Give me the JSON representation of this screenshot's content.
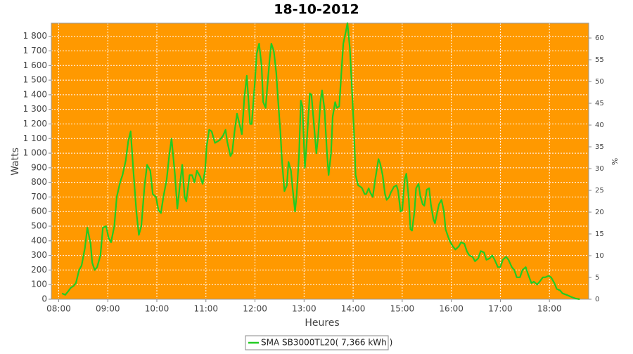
{
  "chart_data": {
    "type": "line",
    "title": "18-10-2012",
    "x_label": "Heures",
    "y_label": "Watts",
    "y2_label": "%",
    "x": [
      "08:04",
      "08:08",
      "08:11",
      "08:15",
      "08:18",
      "08:21",
      "08:25",
      "08:28",
      "08:32",
      "08:35",
      "08:39",
      "08:41",
      "08:44",
      "08:47",
      "08:51",
      "08:54",
      "08:58",
      "09:01",
      "09:04",
      "09:08",
      "09:11",
      "09:15",
      "09:18",
      "09:22",
      "09:25",
      "09:28",
      "09:31",
      "09:35",
      "09:38",
      "09:41",
      "09:45",
      "09:48",
      "09:52",
      "09:55",
      "09:59",
      "10:02",
      "10:05",
      "10:08",
      "10:12",
      "10:15",
      "10:18",
      "10:22",
      "10:25",
      "10:29",
      "10:31",
      "10:34",
      "10:36",
      "10:40",
      "10:43",
      "10:46",
      "10:49",
      "10:53",
      "10:56",
      "10:59",
      "11:01",
      "11:04",
      "11:07",
      "11:11",
      "11:14",
      "11:17",
      "11:21",
      "11:24",
      "11:26",
      "11:30",
      "11:32",
      "11:35",
      "11:38",
      "11:41",
      "11:44",
      "11:47",
      "11:50",
      "11:54",
      "11:56",
      "12:00",
      "12:02",
      "12:05",
      "12:08",
      "12:10",
      "12:13",
      "12:15",
      "12:18",
      "12:20",
      "12:23",
      "12:26",
      "12:28",
      "12:31",
      "12:33",
      "12:36",
      "12:39",
      "12:41",
      "12:44",
      "12:46",
      "12:49",
      "12:51",
      "12:54",
      "12:56",
      "12:58",
      "13:01",
      "13:03",
      "13:07",
      "13:09",
      "13:12",
      "13:15",
      "13:17",
      "13:20",
      "13:22",
      "13:25",
      "13:28",
      "13:30",
      "13:33",
      "13:35",
      "13:38",
      "13:40",
      "13:43",
      "13:45",
      "13:48",
      "13:51",
      "13:53",
      "13:56",
      "13:58",
      "14:01",
      "14:03",
      "14:06",
      "14:09",
      "14:11",
      "14:14",
      "14:16",
      "14:19",
      "14:21",
      "14:24",
      "14:27",
      "14:31",
      "14:33",
      "14:36",
      "14:39",
      "14:41",
      "14:44",
      "14:46",
      "14:50",
      "14:53",
      "14:55",
      "14:58",
      "15:00",
      "15:03",
      "15:05",
      "15:08",
      "15:10",
      "15:12",
      "15:15",
      "15:17",
      "15:20",
      "15:22",
      "15:25",
      "15:27",
      "15:30",
      "15:33",
      "15:35",
      "15:38",
      "15:40",
      "15:43",
      "15:45",
      "15:48",
      "15:51",
      "15:53",
      "15:56",
      "15:58",
      "16:02",
      "16:05",
      "16:09",
      "16:12",
      "16:16",
      "16:19",
      "16:22",
      "16:26",
      "16:29",
      "16:33",
      "16:36",
      "16:40",
      "16:43",
      "16:47",
      "16:50",
      "16:53",
      "16:57",
      "17:00",
      "17:03",
      "17:07",
      "17:10",
      "17:14",
      "17:17",
      "17:20",
      "17:24",
      "17:27",
      "17:31",
      "17:34",
      "17:38",
      "17:41",
      "17:45",
      "17:48",
      "17:52",
      "17:55",
      "17:59",
      "18:02",
      "18:06",
      "18:09",
      "18:13",
      "18:16",
      "18:21",
      "18:27",
      "18:32",
      "18:37"
    ],
    "series": [
      {
        "name": "SMA SB3000TL20( 7,366 kWh )",
        "color": "#22cc22",
        "values": [
          40,
          30,
          50,
          80,
          90,
          110,
          200,
          230,
          350,
          490,
          380,
          250,
          200,
          220,
          300,
          490,
          500,
          420,
          390,
          500,
          700,
          800,
          850,
          950,
          1080,
          1150,
          900,
          600,
          440,
          500,
          780,
          920,
          880,
          720,
          700,
          610,
          590,
          700,
          820,
          980,
          1100,
          860,
          620,
          820,
          920,
          700,
          670,
          850,
          850,
          800,
          880,
          840,
          790,
          880,
          1050,
          1160,
          1150,
          1070,
          1080,
          1090,
          1120,
          1160,
          1080,
          980,
          1000,
          1150,
          1270,
          1200,
          1130,
          1380,
          1530,
          1200,
          1200,
          1500,
          1680,
          1750,
          1600,
          1350,
          1310,
          1450,
          1650,
          1750,
          1700,
          1550,
          1380,
          1150,
          950,
          740,
          780,
          940,
          880,
          760,
          600,
          720,
          1000,
          1360,
          1320,
          900,
          1050,
          1410,
          1400,
          1200,
          1000,
          1100,
          1350,
          1430,
          1300,
          1000,
          850,
          1000,
          1250,
          1350,
          1310,
          1320,
          1500,
          1750,
          1830,
          1890,
          1720,
          1500,
          1150,
          850,
          780,
          770,
          760,
          720,
          720,
          760,
          730,
          700,
          820,
          960,
          930,
          850,
          720,
          680,
          700,
          730,
          770,
          780,
          740,
          600,
          610,
          820,
          860,
          690,
          480,
          470,
          600,
          760,
          790,
          710,
          650,
          640,
          750,
          760,
          650,
          550,
          520,
          600,
          650,
          680,
          600,
          480,
          430,
          400,
          360,
          340,
          360,
          390,
          380,
          330,
          300,
          290,
          260,
          280,
          330,
          320,
          270,
          280,
          300,
          270,
          220,
          220,
          270,
          290,
          270,
          220,
          200,
          150,
          150,
          200,
          220,
          170,
          110,
          120,
          100,
          120,
          150,
          150,
          160,
          150,
          110,
          70,
          60,
          40,
          30,
          15,
          5,
          0
        ]
      }
    ],
    "xlim": [
      "07:51",
      "18:48"
    ],
    "xticks": [
      "08:00",
      "09:00",
      "10:00",
      "11:00",
      "12:00",
      "13:00",
      "14:00",
      "15:00",
      "16:00",
      "17:00",
      "18:00"
    ],
    "ylim": [
      0,
      1890
    ],
    "yticks": [
      0,
      100,
      200,
      300,
      400,
      500,
      600,
      700,
      800,
      900,
      {
        "value": 1000,
        "label": "1 000"
      },
      {
        "value": 1100,
        "label": "1 100"
      },
      {
        "value": 1200,
        "label": "1 200"
      },
      {
        "value": 1300,
        "label": "1 300"
      },
      {
        "value": 1400,
        "label": "1 400"
      },
      {
        "value": 1500,
        "label": "1 500"
      },
      {
        "value": 1600,
        "label": "1 600"
      },
      {
        "value": 1700,
        "label": "1 700"
      },
      {
        "value": 1800,
        "label": "1 800"
      }
    ],
    "y2lim": [
      0,
      63.4
    ],
    "y2ticks": [
      0,
      5,
      10,
      15,
      20,
      25,
      30,
      35,
      40,
      45,
      50,
      55,
      60
    ],
    "grid": true,
    "background": "#ff9900",
    "legend": "bottom"
  }
}
